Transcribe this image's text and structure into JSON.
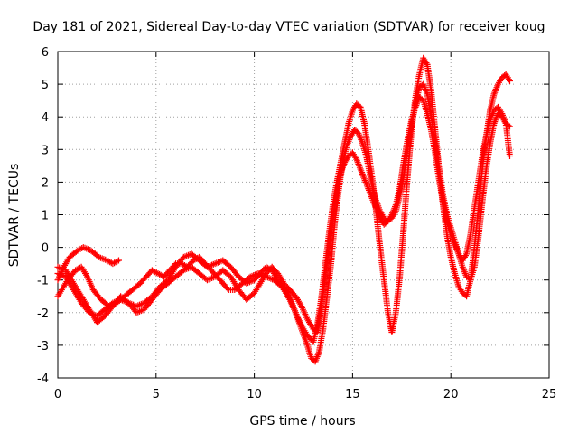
{
  "chart_data": {
    "type": "scatter",
    "title": "Day 181 of 2021, Sidereal Day-to-day VTEC variation (SDTVAR) for receiver koug",
    "xlabel": "GPS time / hours",
    "ylabel": "SDTVAR / TECUs",
    "xlim": [
      0,
      25
    ],
    "ylim": [
      -4,
      6
    ],
    "xticks": [
      "0",
      "5",
      "10",
      "15",
      "20",
      "25"
    ],
    "yticks": [
      "-4",
      "-3",
      "-2",
      "-1",
      "0",
      "1",
      "2",
      "3",
      "4",
      "5",
      "6"
    ],
    "grid": true,
    "marker": "plus",
    "color": "#ff0000",
    "series": [
      {
        "x": [
          0.0,
          0.3,
          0.6,
          1.0,
          1.3,
          1.7,
          2.1,
          2.5,
          2.8,
          3.1
        ],
        "y": [
          -1.0,
          -0.6,
          -0.3,
          -0.1,
          0.0,
          -0.1,
          -0.3,
          -0.4,
          -0.5,
          -0.4
        ]
      },
      {
        "x": [
          0.0,
          0.2,
          0.5,
          0.9,
          1.2,
          1.5,
          1.8,
          2.2,
          2.6,
          3.0,
          3.4,
          3.8,
          4.2,
          4.5,
          4.8,
          5.1,
          5.4,
          5.7,
          6.0,
          6.3,
          6.6,
          6.9,
          7.2,
          7.5,
          7.8,
          8.1,
          8.4,
          8.7,
          9.0,
          9.4,
          9.8,
          10.2,
          10.6,
          11.0,
          11.4,
          11.8,
          12.1,
          12.4,
          12.7,
          12.9,
          13.1,
          13.3,
          13.5,
          13.7,
          13.9,
          14.1,
          14.3,
          14.5,
          14.7,
          14.9,
          15.1,
          15.3,
          15.5,
          15.7,
          15.9,
          16.1,
          16.4,
          16.7,
          17.0,
          17.2,
          17.4,
          17.6,
          17.8,
          18.0,
          18.2,
          18.4,
          18.6,
          18.8,
          19.0,
          19.2,
          19.4,
          19.6,
          19.8,
          20.0,
          20.2,
          20.4,
          20.6,
          20.8,
          21.0,
          21.2,
          21.4,
          21.6,
          21.8,
          22.0,
          22.2,
          22.4,
          22.6,
          22.8,
          23.0
        ],
        "y": [
          -1.5,
          -1.3,
          -1.0,
          -0.7,
          -0.6,
          -0.9,
          -1.3,
          -1.6,
          -1.8,
          -1.7,
          -1.5,
          -1.3,
          -1.1,
          -0.9,
          -0.7,
          -0.8,
          -0.9,
          -0.7,
          -0.5,
          -0.5,
          -0.6,
          -0.4,
          -0.3,
          -0.5,
          -0.7,
          -0.9,
          -1.1,
          -1.3,
          -1.3,
          -1.1,
          -0.9,
          -0.8,
          -0.9,
          -1.0,
          -1.2,
          -1.5,
          -2.0,
          -2.5,
          -3.0,
          -3.4,
          -3.5,
          -3.2,
          -2.5,
          -1.5,
          -0.5,
          0.8,
          1.8,
          2.6,
          3.1,
          3.4,
          3.6,
          3.5,
          3.2,
          2.8,
          2.2,
          1.6,
          1.1,
          0.8,
          0.9,
          1.1,
          1.6,
          2.2,
          3.0,
          3.8,
          4.4,
          4.9,
          5.0,
          4.7,
          4.0,
          3.2,
          2.4,
          1.6,
          1.0,
          0.6,
          0.2,
          -0.2,
          -0.6,
          -0.9,
          -1.0,
          -0.6,
          0.3,
          1.4,
          2.4,
          3.2,
          3.8,
          4.1,
          4.0,
          3.8,
          3.7
        ]
      },
      {
        "x": [
          0.0,
          0.4,
          0.8,
          1.2,
          1.6,
          2.0,
          2.4,
          2.8,
          3.2,
          3.6,
          4.0,
          4.4,
          4.8,
          5.2,
          5.6,
          6.0,
          6.4,
          6.8,
          7.2,
          7.6,
          8.0,
          8.4,
          8.8,
          9.2,
          9.6,
          10.0,
          10.3,
          10.6,
          10.9,
          11.2,
          11.5,
          11.8,
          12.1,
          12.4,
          12.7,
          13.0,
          13.2,
          13.4,
          13.6,
          13.8,
          14.0,
          14.2,
          14.4,
          14.6,
          14.8,
          15.0,
          15.2,
          15.4,
          15.6,
          15.8,
          16.0,
          16.2,
          16.4,
          16.6,
          16.8,
          17.0,
          17.2,
          17.4,
          17.6,
          17.8,
          18.0,
          18.2,
          18.4,
          18.6,
          18.8,
          19.0,
          19.2,
          19.4,
          19.6,
          19.8,
          20.0,
          20.2,
          20.4,
          20.6,
          20.8,
          21.0,
          21.2,
          21.4,
          21.6,
          21.8,
          22.0,
          22.2,
          22.4,
          22.6,
          22.8,
          23.0
        ],
        "y": [
          -0.8,
          -0.9,
          -1.3,
          -1.7,
          -2.0,
          -2.1,
          -1.9,
          -1.7,
          -1.6,
          -1.7,
          -1.8,
          -1.7,
          -1.5,
          -1.2,
          -1.0,
          -0.6,
          -0.3,
          -0.2,
          -0.4,
          -0.6,
          -0.5,
          -0.4,
          -0.6,
          -0.9,
          -1.1,
          -1.0,
          -0.8,
          -0.6,
          -0.7,
          -1.0,
          -1.3,
          -1.6,
          -2.0,
          -2.4,
          -2.7,
          -2.9,
          -2.4,
          -1.6,
          -0.6,
          0.4,
          1.3,
          2.0,
          2.6,
          3.2,
          3.8,
          4.2,
          4.4,
          4.3,
          3.8,
          3.0,
          2.1,
          1.1,
          0.0,
          -1.0,
          -2.0,
          -2.6,
          -2.0,
          -0.9,
          0.6,
          2.2,
          3.6,
          4.6,
          5.3,
          5.8,
          5.6,
          4.8,
          3.6,
          2.4,
          1.3,
          0.4,
          -0.3,
          -0.8,
          -1.2,
          -1.4,
          -1.5,
          -1.0,
          0.0,
          1.2,
          2.4,
          3.4,
          4.2,
          4.7,
          5.0,
          5.2,
          5.3,
          5.1
        ]
      },
      {
        "x": [
          0.0,
          0.4,
          0.8,
          1.2,
          1.6,
          2.0,
          2.4,
          2.8,
          3.2,
          3.6,
          4.0,
          4.4,
          4.8,
          5.2,
          5.6,
          6.0,
          6.4,
          6.8,
          7.2,
          7.6,
          8.0,
          8.4,
          8.8,
          9.2,
          9.6,
          10.0,
          10.3,
          10.6,
          10.9,
          11.2,
          11.5,
          11.8,
          12.1,
          12.4,
          12.7,
          13.0,
          13.2,
          13.4,
          13.6,
          13.8,
          14.0,
          14.2,
          14.4,
          14.6,
          14.8,
          15.0,
          15.2,
          15.4,
          15.6,
          15.8,
          16.0,
          16.2,
          16.4,
          16.6,
          16.8,
          17.0,
          17.2,
          17.4,
          17.6,
          17.8,
          18.0,
          18.2,
          18.4,
          18.6,
          18.8,
          19.0,
          19.2,
          19.4,
          19.6,
          19.8,
          20.0,
          20.2,
          20.4,
          20.6,
          20.8,
          21.0,
          21.2,
          21.4,
          21.6,
          21.8,
          22.0,
          22.2,
          22.4,
          22.6,
          22.8,
          23.0
        ],
        "y": [
          -0.6,
          -0.7,
          -1.1,
          -1.5,
          -1.9,
          -2.3,
          -2.1,
          -1.8,
          -1.5,
          -1.7,
          -2.0,
          -1.9,
          -1.6,
          -1.3,
          -1.1,
          -0.9,
          -0.7,
          -0.6,
          -0.8,
          -1.0,
          -0.9,
          -0.7,
          -0.9,
          -1.3,
          -1.6,
          -1.4,
          -1.1,
          -0.8,
          -0.6,
          -0.8,
          -1.1,
          -1.3,
          -1.5,
          -1.8,
          -2.2,
          -2.5,
          -2.6,
          -1.9,
          -1.0,
          0.0,
          0.9,
          1.7,
          2.3,
          2.6,
          2.8,
          2.9,
          2.7,
          2.4,
          2.1,
          1.8,
          1.5,
          1.2,
          0.9,
          0.7,
          0.8,
          1.0,
          1.3,
          1.8,
          2.6,
          3.3,
          3.9,
          4.3,
          4.6,
          4.5,
          4.1,
          3.6,
          2.9,
          2.1,
          1.4,
          0.8,
          0.4,
          0.1,
          -0.2,
          -0.4,
          -0.2,
          0.4,
          1.2,
          2.0,
          2.8,
          3.4,
          3.9,
          4.2,
          4.3,
          4.1,
          3.8,
          2.8
        ]
      }
    ]
  }
}
